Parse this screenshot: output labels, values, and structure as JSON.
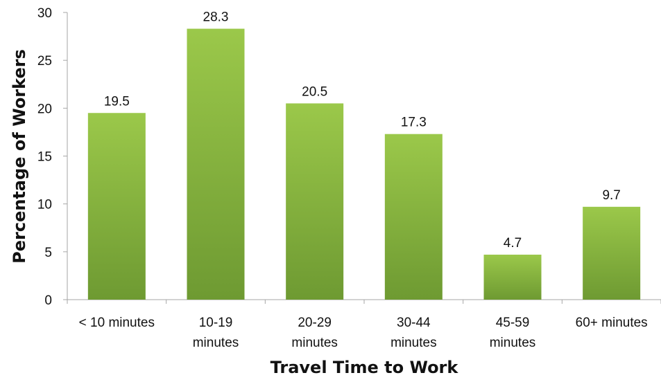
{
  "chart_data": {
    "type": "bar",
    "title": "",
    "xlabel": "Travel Time to Work",
    "ylabel": "Percentage of Workers",
    "categories": [
      [
        "< 10 minutes"
      ],
      [
        "10-19",
        "minutes"
      ],
      [
        "20-29",
        "minutes"
      ],
      [
        "30-44",
        "minutes"
      ],
      [
        "45-59",
        "minutes"
      ],
      [
        "60+ minutes"
      ]
    ],
    "values": [
      19.5,
      28.3,
      20.5,
      17.3,
      4.7,
      9.7
    ],
    "value_labels": [
      "19.5",
      "28.3",
      "20.5",
      "17.3",
      "4.7",
      "9.7"
    ],
    "ylim": [
      0,
      30
    ],
    "yticks": [
      0,
      5,
      10,
      15,
      20,
      25,
      30
    ],
    "grid": false,
    "legend": "none",
    "colors": {
      "bar_top": "#9bc84a",
      "bar_bottom": "#6e9a32",
      "axis": "#a6a6a6"
    }
  }
}
